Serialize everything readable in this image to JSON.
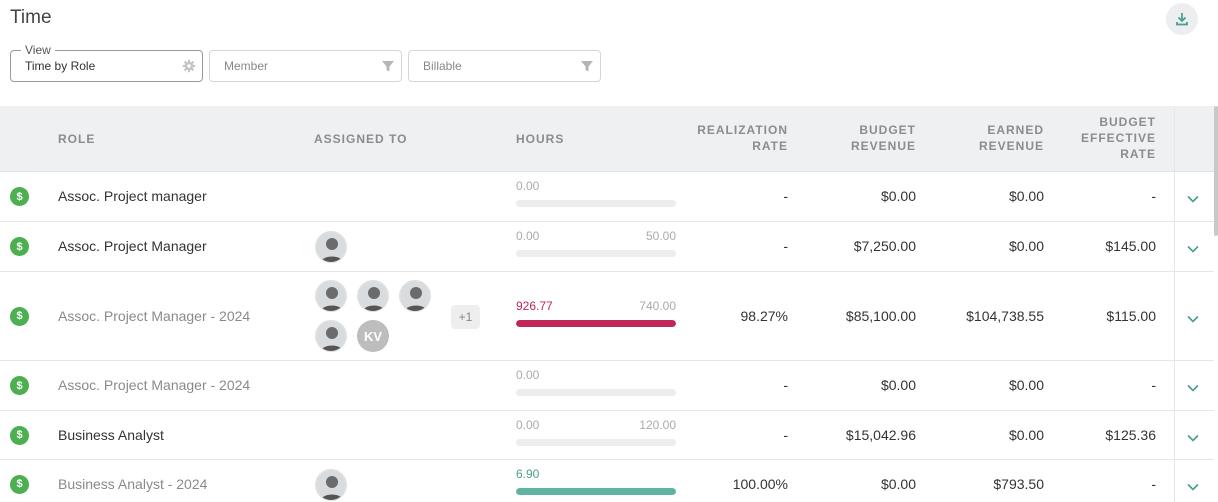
{
  "header": {
    "title": "Time"
  },
  "filters": {
    "view": {
      "legend": "View",
      "value": "Time by Role"
    },
    "member": {
      "placeholder": "Member"
    },
    "billable": {
      "placeholder": "Billable"
    }
  },
  "columns": {
    "role": "ROLE",
    "assigned": "ASSIGNED TO",
    "hours": "HOURS",
    "realization_1": "REALIZATION",
    "realization_2": "RATE",
    "budget_revenue_1": "BUDGET",
    "budget_revenue_2": "REVENUE",
    "earned_revenue_1": "EARNED",
    "earned_revenue_2": "REVENUE",
    "ber_1": "BUDGET",
    "ber_2": "EFFECTIVE",
    "ber_3": "RATE"
  },
  "rows": [
    {
      "role": "Assoc. Project manager",
      "muted": false,
      "hours": "0.00",
      "budget_hours": "",
      "hours_fraction": 0,
      "bar_color": "#ededed",
      "realization": "-",
      "budget_revenue": "$0.00",
      "earned_revenue": "$0.00",
      "budget_effective_rate": "-",
      "avatars": []
    },
    {
      "role": "Assoc. Project Manager",
      "muted": false,
      "hours": "0.00",
      "budget_hours": "50.00",
      "hours_fraction": 0,
      "bar_color": "#ededed",
      "realization": "-",
      "budget_revenue": "$7,250.00",
      "earned_revenue": "$0.00",
      "budget_effective_rate": "$145.00",
      "avatars": [
        {
          "type": "photo",
          "icon": "person-avatar-icon"
        }
      ]
    },
    {
      "role": "Assoc. Project Manager - 2024",
      "muted": true,
      "hours": "926.77",
      "budget_hours": "740.00",
      "hours_fraction": 1,
      "bar_color": "#c0265a",
      "hours_color": "#c0265a",
      "realization": "98.27%",
      "budget_revenue": "$85,100.00",
      "earned_revenue": "$104,738.55",
      "budget_effective_rate": "$115.00",
      "avatars": [
        {
          "type": "photo",
          "icon": "person-avatar-icon"
        },
        {
          "type": "photo",
          "icon": "person-avatar-icon"
        },
        {
          "type": "photo",
          "icon": "person-avatar-icon"
        },
        {
          "type": "photo",
          "icon": "person-avatar-icon"
        },
        {
          "type": "initials",
          "text": "KV"
        }
      ],
      "more": "+1"
    },
    {
      "role": "Assoc. Project Manager - 2024",
      "muted": true,
      "hours": "0.00",
      "budget_hours": "",
      "hours_fraction": 0,
      "bar_color": "#ededed",
      "realization": "-",
      "budget_revenue": "$0.00",
      "earned_revenue": "$0.00",
      "budget_effective_rate": "-",
      "avatars": []
    },
    {
      "role": "Business Analyst",
      "muted": false,
      "hours": "0.00",
      "budget_hours": "120.00",
      "hours_fraction": 0,
      "bar_color": "#ededed",
      "realization": "-",
      "budget_revenue": "$15,042.96",
      "earned_revenue": "$0.00",
      "budget_effective_rate": "$125.36",
      "avatars": []
    },
    {
      "role": "Business Analyst - 2024",
      "muted": true,
      "hours": "6.90",
      "budget_hours": "",
      "hours_fraction": 1,
      "bar_color": "#5eb3a3",
      "hours_color": "#4a9e8f",
      "realization": "100.00%",
      "budget_revenue": "$0.00",
      "earned_revenue": "$793.50",
      "budget_effective_rate": "-",
      "avatars": [
        {
          "type": "photo",
          "icon": "person-avatar-icon"
        }
      ]
    }
  ],
  "colors": {
    "billable_icon": "#4caf50",
    "chevron": "#4a9e8f",
    "accent": "#4a9e8f"
  }
}
